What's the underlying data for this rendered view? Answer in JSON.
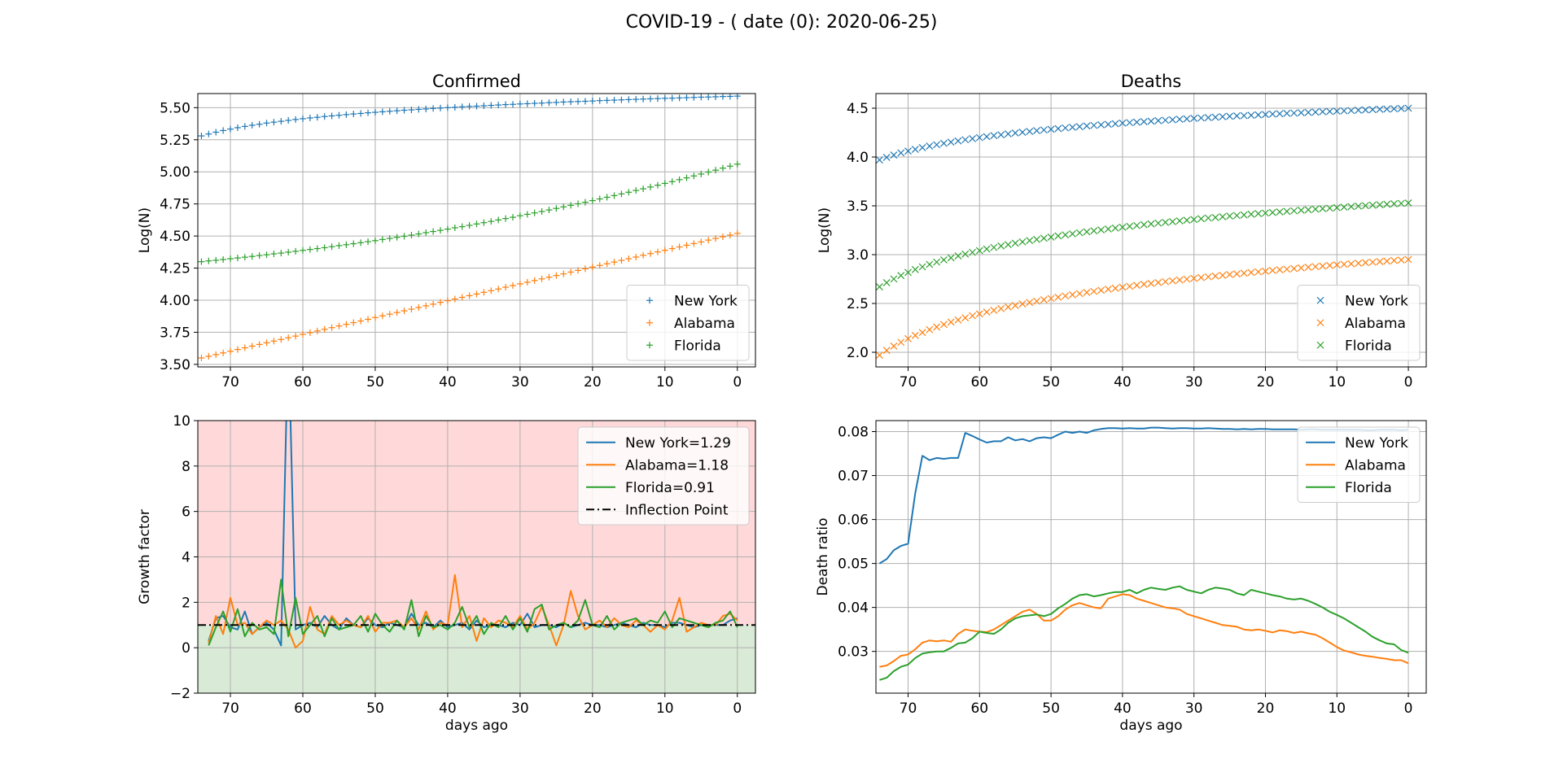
{
  "figure": {
    "suptitle": "COVID-19 -  ( date (0): 2020-06-25)"
  },
  "colors": {
    "series": [
      "#1f77b4",
      "#ff7f0e",
      "#2ca02c"
    ],
    "growth_bg_above": "#ffd9d9",
    "growth_bg_below": "#d9ebd6",
    "grid": "#b0b0b0"
  },
  "chart_data": [
    {
      "id": "confirmed",
      "type": "scatter",
      "marker": "plus",
      "title": "Confirmed",
      "xlabel": "",
      "ylabel": "Log(N)",
      "xlim": [
        74.5,
        -2.5
      ],
      "ylim": [
        3.48,
        5.61
      ],
      "xticks": [
        70,
        60,
        50,
        40,
        30,
        20,
        10,
        0
      ],
      "yticks": [
        3.5,
        3.75,
        4.0,
        4.25,
        4.5,
        4.75,
        5.0,
        5.25,
        5.5
      ],
      "ytick_labels": [
        "3.50",
        "3.75",
        "4.00",
        "4.25",
        "4.50",
        "4.75",
        "5.00",
        "5.25",
        "5.50"
      ],
      "grid": true,
      "legend": "lower-right",
      "series": [
        {
          "name": "New York",
          "generator": "log",
          "start": 5.28,
          "end": 5.59,
          "x_from": 74,
          "x_to": 0
        },
        {
          "name": "Alabama",
          "generator": "linear",
          "start": 3.55,
          "end": 4.52,
          "x_from": 74,
          "x_to": 0
        },
        {
          "name": "Florida",
          "generator": "sigmoid",
          "start": 4.3,
          "end": 5.06,
          "x_from": 74,
          "x_to": 0
        }
      ]
    },
    {
      "id": "deaths",
      "type": "scatter",
      "marker": "x",
      "title": "Deaths",
      "xlabel": "",
      "ylabel": "Log(N)",
      "xlim": [
        74.5,
        -2.5
      ],
      "ylim": [
        1.85,
        4.65
      ],
      "xticks": [
        70,
        60,
        50,
        40,
        30,
        20,
        10,
        0
      ],
      "yticks": [
        2.0,
        2.5,
        3.0,
        3.5,
        4.0,
        4.5
      ],
      "ytick_labels": [
        "2.0",
        "2.5",
        "3.0",
        "3.5",
        "4.0",
        "4.5"
      ],
      "grid": true,
      "legend": "lower-right",
      "series": [
        {
          "name": "New York",
          "generator": "log",
          "start": 3.97,
          "end": 4.5,
          "x_from": 74,
          "x_to": 0
        },
        {
          "name": "Alabama",
          "generator": "log",
          "start": 1.97,
          "end": 2.95,
          "x_from": 74,
          "x_to": 0
        },
        {
          "name": "Florida",
          "generator": "log",
          "start": 2.67,
          "end": 3.53,
          "x_from": 74,
          "x_to": 0
        }
      ]
    },
    {
      "id": "growth",
      "type": "line",
      "title": "",
      "xlabel": "days ago",
      "ylabel": "Growth factor",
      "xlim": [
        74.5,
        -2.5
      ],
      "ylim": [
        -2,
        10
      ],
      "xticks": [
        70,
        60,
        50,
        40,
        30,
        20,
        10,
        0
      ],
      "yticks": [
        -2,
        0,
        2,
        4,
        6,
        8,
        10
      ],
      "ytick_labels": [
        "−2",
        "0",
        "2",
        "4",
        "6",
        "8",
        "10"
      ],
      "grid": true,
      "legend": "upper-right",
      "inflection_point": {
        "name": "Inflection Point",
        "value": 1.0
      },
      "x": [
        73,
        72,
        71,
        70,
        69,
        68,
        67,
        66,
        65,
        64,
        63,
        62,
        61,
        60,
        59,
        58,
        57,
        56,
        55,
        54,
        53,
        52,
        51,
        50,
        49,
        48,
        47,
        46,
        45,
        44,
        43,
        42,
        41,
        40,
        39,
        38,
        37,
        36,
        35,
        34,
        33,
        32,
        31,
        30,
        29,
        28,
        27,
        26,
        25,
        24,
        23,
        22,
        21,
        20,
        19,
        18,
        17,
        16,
        15,
        14,
        13,
        12,
        11,
        10,
        9,
        8,
        7,
        6,
        5,
        4,
        3,
        2,
        1,
        0
      ],
      "series": [
        {
          "name": "New York=1.29",
          "values": [
            0.3,
            1.3,
            1.4,
            0.9,
            0.8,
            1.6,
            0.6,
            0.9,
            1.1,
            0.8,
            0.1,
            14,
            0.8,
            1.0,
            1.1,
            0.9,
            1.4,
            1.0,
            0.8,
            1.3,
            1.0,
            0.9,
            1.3,
            1.0,
            0.9,
            1.1,
            1.0,
            0.9,
            1.5,
            1.0,
            1.1,
            0.9,
            1.2,
            0.9,
            1.0,
            1.1,
            0.8,
            1.2,
            0.9,
            1.0,
            1.0,
            0.9,
            1.1,
            1.0,
            1.5,
            0.9,
            1.0,
            1.0,
            0.9,
            1.1,
            0.9,
            1.0,
            1.1,
            1.0,
            1.0,
            0.9,
            1.0,
            1.1,
            1.0,
            0.9,
            1.1,
            1.0,
            1.0,
            0.9,
            1.1,
            1.1,
            1.0,
            0.9,
            1.0,
            1.0,
            1.0,
            1.0,
            1.2,
            1.3
          ]
        },
        {
          "name": "Alabama=1.18",
          "values": [
            0.2,
            1.4,
            0.6,
            2.2,
            1.0,
            1.1,
            0.6,
            0.9,
            1.2,
            1.0,
            1.2,
            0.8,
            0.0,
            0.3,
            1.8,
            0.8,
            0.6,
            1.4,
            1.0,
            1.2,
            1.0,
            0.9,
            1.4,
            0.7,
            1.1,
            1.1,
            1.2,
            0.9,
            1.3,
            0.8,
            1.6,
            0.8,
            1.1,
            1.0,
            3.2,
            0.9,
            1.4,
            0.3,
            1.3,
            0.9,
            1.2,
            1.1,
            0.9,
            1.4,
            0.8,
            1.1,
            1.8,
            1.0,
            0.1,
            1.0,
            2.5,
            1.4,
            0.8,
            1.0,
            1.2,
            0.9,
            1.3,
            1.0,
            0.9,
            1.2,
            1.0,
            0.7,
            1.0,
            0.8,
            1.2,
            2.2,
            0.7,
            0.9,
            1.1,
            1.0,
            1.0,
            1.4,
            1.5,
            1.2
          ]
        },
        {
          "name": "Florida=0.91",
          "values": [
            0.1,
            0.9,
            1.6,
            0.7,
            1.7,
            0.5,
            1.1,
            0.8,
            0.9,
            0.6,
            3.0,
            0.5,
            2.2,
            0.6,
            1.0,
            1.4,
            0.5,
            1.3,
            0.8,
            0.9,
            1.0,
            1.4,
            0.7,
            1.5,
            1.0,
            0.7,
            1.2,
            0.8,
            2.1,
            0.5,
            1.4,
            0.9,
            1.0,
            0.8,
            1.1,
            1.8,
            0.9,
            1.4,
            0.6,
            1.1,
            0.9,
            1.4,
            0.8,
            1.3,
            0.7,
            1.7,
            1.9,
            0.8,
            1.0,
            1.1,
            0.9,
            1.2,
            2.1,
            1.0,
            0.9,
            1.4,
            0.8,
            1.1,
            1.2,
            1.3,
            1.0,
            1.2,
            1.1,
            1.6,
            0.9,
            1.3,
            1.2,
            1.1,
            1.0,
            0.9,
            1.1,
            1.2,
            1.6,
            0.9
          ]
        }
      ]
    },
    {
      "id": "death_ratio",
      "type": "line",
      "title": "",
      "xlabel": "days ago",
      "ylabel": "Death ratio",
      "xlim": [
        74.5,
        -2.5
      ],
      "ylim": [
        0.0205,
        0.0825
      ],
      "xticks": [
        70,
        60,
        50,
        40,
        30,
        20,
        10,
        0
      ],
      "yticks": [
        0.03,
        0.04,
        0.05,
        0.06,
        0.07,
        0.08
      ],
      "ytick_labels": [
        "0.03",
        "0.04",
        "0.05",
        "0.06",
        "0.07",
        "0.08"
      ],
      "grid": true,
      "legend": "upper-right",
      "x": [
        74,
        73,
        72,
        71,
        70,
        69,
        68,
        67,
        66,
        65,
        64,
        63,
        62,
        61,
        60,
        59,
        58,
        57,
        56,
        55,
        54,
        53,
        52,
        51,
        50,
        49,
        48,
        47,
        46,
        45,
        44,
        43,
        42,
        41,
        40,
        39,
        38,
        37,
        36,
        35,
        34,
        33,
        32,
        31,
        30,
        29,
        28,
        27,
        26,
        25,
        24,
        23,
        22,
        21,
        20,
        19,
        18,
        17,
        16,
        15,
        14,
        13,
        12,
        11,
        10,
        9,
        8,
        7,
        6,
        5,
        4,
        3,
        2,
        1,
        0
      ],
      "series": [
        {
          "name": "New York",
          "values": [
            0.05,
            0.051,
            0.053,
            0.054,
            0.0545,
            0.066,
            0.0745,
            0.0735,
            0.074,
            0.0738,
            0.074,
            0.074,
            0.0797,
            0.079,
            0.0782,
            0.0775,
            0.0778,
            0.0778,
            0.0787,
            0.078,
            0.0783,
            0.0778,
            0.0785,
            0.0787,
            0.0785,
            0.0793,
            0.08,
            0.0797,
            0.08,
            0.0797,
            0.0803,
            0.0806,
            0.0808,
            0.0808,
            0.0807,
            0.0808,
            0.0807,
            0.0807,
            0.0809,
            0.0809,
            0.0808,
            0.0807,
            0.0808,
            0.0808,
            0.0807,
            0.0807,
            0.0808,
            0.0807,
            0.0806,
            0.0806,
            0.0805,
            0.0806,
            0.0805,
            0.0806,
            0.0806,
            0.0805,
            0.0805,
            0.0805,
            0.0805,
            0.0804,
            0.0805,
            0.0805,
            0.0804,
            0.0804,
            0.0804,
            0.0804,
            0.0804,
            0.0804,
            0.0803,
            0.0803,
            0.0804,
            0.0804,
            0.0804,
            0.0803,
            0.0804
          ]
        },
        {
          "name": "Alabama",
          "values": [
            0.0265,
            0.0268,
            0.0278,
            0.029,
            0.0293,
            0.0305,
            0.032,
            0.0325,
            0.0323,
            0.0325,
            0.0322,
            0.034,
            0.035,
            0.0347,
            0.0345,
            0.0344,
            0.035,
            0.036,
            0.037,
            0.038,
            0.039,
            0.0395,
            0.0385,
            0.037,
            0.037,
            0.038,
            0.0395,
            0.0405,
            0.041,
            0.0405,
            0.04,
            0.0398,
            0.042,
            0.0425,
            0.043,
            0.0428,
            0.042,
            0.0415,
            0.041,
            0.0405,
            0.04,
            0.0398,
            0.0395,
            0.0385,
            0.038,
            0.0375,
            0.037,
            0.0365,
            0.036,
            0.0358,
            0.0356,
            0.035,
            0.0348,
            0.035,
            0.0347,
            0.0343,
            0.0348,
            0.0346,
            0.0342,
            0.0345,
            0.0341,
            0.0338,
            0.033,
            0.032,
            0.031,
            0.0302,
            0.0298,
            0.0293,
            0.029,
            0.0288,
            0.0285,
            0.0283,
            0.028,
            0.028,
            0.0273
          ]
        },
        {
          "name": "Florida",
          "values": [
            0.0235,
            0.024,
            0.0255,
            0.0265,
            0.027,
            0.0285,
            0.0295,
            0.0298,
            0.03,
            0.03,
            0.0308,
            0.0318,
            0.032,
            0.033,
            0.0345,
            0.0342,
            0.034,
            0.035,
            0.0365,
            0.0375,
            0.038,
            0.0382,
            0.0384,
            0.038,
            0.0385,
            0.0398,
            0.0408,
            0.042,
            0.0428,
            0.043,
            0.0425,
            0.0428,
            0.0432,
            0.0435,
            0.0435,
            0.044,
            0.0432,
            0.044,
            0.0445,
            0.0442,
            0.044,
            0.0445,
            0.0448,
            0.044,
            0.0436,
            0.0432,
            0.044,
            0.0445,
            0.0443,
            0.044,
            0.0432,
            0.0428,
            0.044,
            0.0436,
            0.0432,
            0.0428,
            0.0425,
            0.042,
            0.0418,
            0.042,
            0.0415,
            0.0408,
            0.04,
            0.039,
            0.0383,
            0.0375,
            0.0365,
            0.0355,
            0.0345,
            0.0333,
            0.0325,
            0.0318,
            0.0316,
            0.0303,
            0.0297
          ]
        }
      ]
    }
  ]
}
